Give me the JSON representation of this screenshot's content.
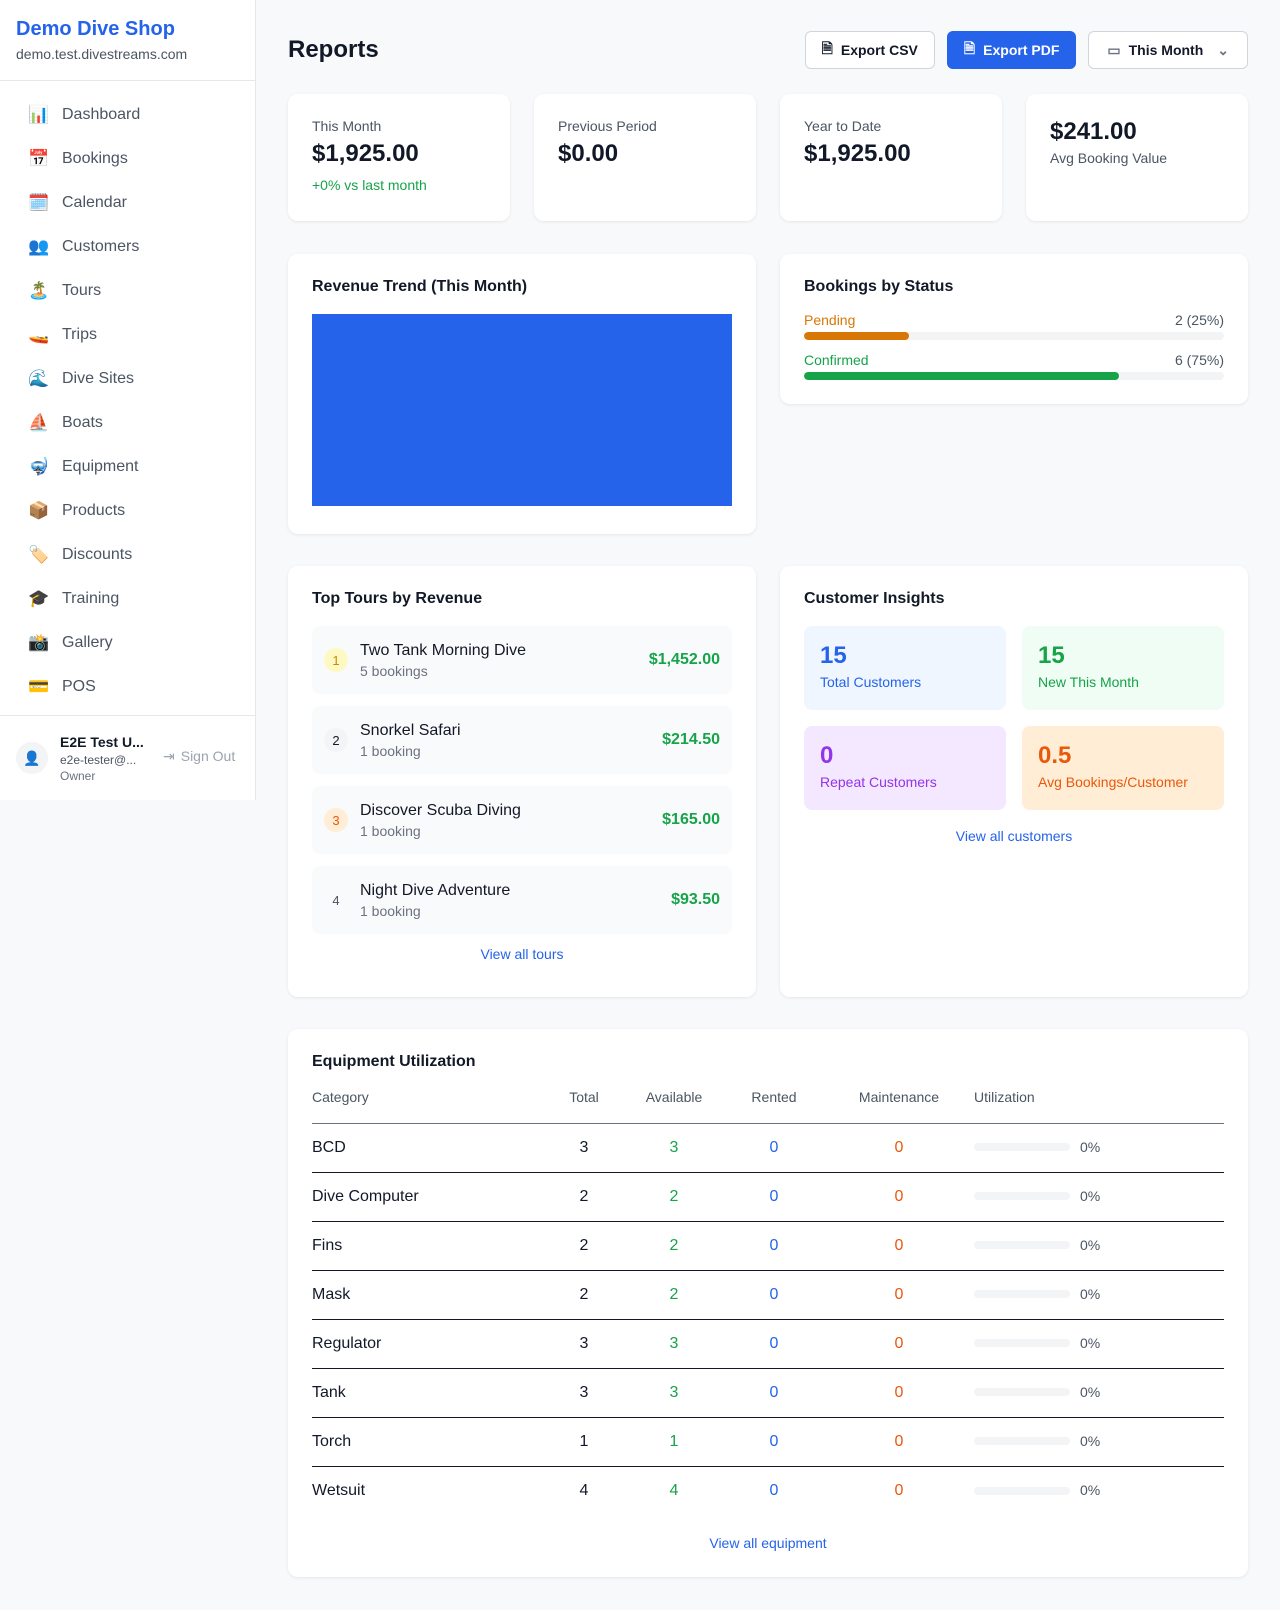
{
  "sidebar": {
    "shop_name": "Demo Dive Shop",
    "domain": "demo.test.divestreams.com",
    "items": [
      {
        "label": "Dashboard",
        "icon": "📊"
      },
      {
        "label": "Bookings",
        "icon": "📅"
      },
      {
        "label": "Calendar",
        "icon": "🗓️"
      },
      {
        "label": "Customers",
        "icon": "👥"
      },
      {
        "label": "Tours",
        "icon": "🏝️"
      },
      {
        "label": "Trips",
        "icon": "🚤"
      },
      {
        "label": "Dive Sites",
        "icon": "🌊"
      },
      {
        "label": "Boats",
        "icon": "⛵"
      },
      {
        "label": "Equipment",
        "icon": "🤿"
      },
      {
        "label": "Products",
        "icon": "📦"
      },
      {
        "label": "Discounts",
        "icon": "🏷️"
      },
      {
        "label": "Training",
        "icon": "🎓"
      },
      {
        "label": "Gallery",
        "icon": "📸"
      },
      {
        "label": "POS",
        "icon": "💳"
      }
    ],
    "user": {
      "name": "E2E Test U...",
      "email": "e2e-tester@...",
      "role": "Owner",
      "sign_out": "Sign Out"
    }
  },
  "header": {
    "title": "Reports",
    "export_csv": "Export CSV",
    "export_pdf": "Export PDF",
    "period": "This Month"
  },
  "stats": [
    {
      "label": "This Month",
      "value": "$1,925.00",
      "change": "+0% vs last month"
    },
    {
      "label": "Previous Period",
      "value": "$0.00"
    },
    {
      "label": "Year to Date",
      "value": "$1,925.00"
    },
    {
      "value": "$241.00",
      "label": "Avg Booking Value"
    }
  ],
  "revenue": {
    "title": "Revenue Trend (This Month)"
  },
  "chart_data": {
    "type": "bar",
    "categories": [
      "This Month"
    ],
    "values": [
      1925
    ],
    "color": "#2563eb",
    "grid": false
  },
  "status": {
    "title": "Bookings by Status",
    "items": [
      {
        "label": "Pending",
        "value": "2 (25%)",
        "percent": 25,
        "color": "#d97706"
      },
      {
        "label": "Confirmed",
        "value": "6 (75%)",
        "percent": 75,
        "color": "#16a34a"
      }
    ]
  },
  "tours": {
    "title": "Top Tours by Revenue",
    "link": "View all tours",
    "items": [
      {
        "rank": "1",
        "name": "Two Tank Morning Dive",
        "count": "5 bookings",
        "revenue": "$1,452.00"
      },
      {
        "rank": "2",
        "name": "Snorkel Safari",
        "count": "1 booking",
        "revenue": "$214.50"
      },
      {
        "rank": "3",
        "name": "Discover Scuba Diving",
        "count": "1 booking",
        "revenue": "$165.00"
      },
      {
        "rank": "4",
        "name": "Night Dive Adventure",
        "count": "1 booking",
        "revenue": "$93.50"
      }
    ]
  },
  "insights": {
    "title": "Customer Insights",
    "link": "View all customers",
    "items": [
      {
        "value": "15",
        "label": "Total Customers",
        "bg": "#eff6ff",
        "color": "#2563eb"
      },
      {
        "value": "15",
        "label": "New This Month",
        "bg": "#f0fdf4",
        "color": "#16a34a"
      },
      {
        "value": "0",
        "label": "Repeat Customers",
        "bg": "#f3e8ff",
        "color": "#9333ea"
      },
      {
        "value": "0.5",
        "label": "Avg Bookings/Customer",
        "bg": "#ffedd5",
        "color": "#ea580c"
      }
    ]
  },
  "equipment": {
    "title": "Equipment Utilization",
    "link": "View all equipment",
    "columns": [
      "Category",
      "Total",
      "Available",
      "Rented",
      "Maintenance",
      "Utilization"
    ],
    "rows": [
      [
        "BCD",
        "3",
        "3",
        "0",
        "0",
        "0%"
      ],
      [
        "Dive Computer",
        "2",
        "2",
        "0",
        "0",
        "0%"
      ],
      [
        "Fins",
        "2",
        "2",
        "0",
        "0",
        "0%"
      ],
      [
        "Mask",
        "2",
        "2",
        "0",
        "0",
        "0%"
      ],
      [
        "Regulator",
        "3",
        "3",
        "0",
        "0",
        "0%"
      ],
      [
        "Tank",
        "3",
        "3",
        "0",
        "0",
        "0%"
      ],
      [
        "Torch",
        "1",
        "1",
        "0",
        "0",
        "0%"
      ],
      [
        "Wetsuit",
        "4",
        "4",
        "0",
        "0",
        "0%"
      ]
    ]
  }
}
